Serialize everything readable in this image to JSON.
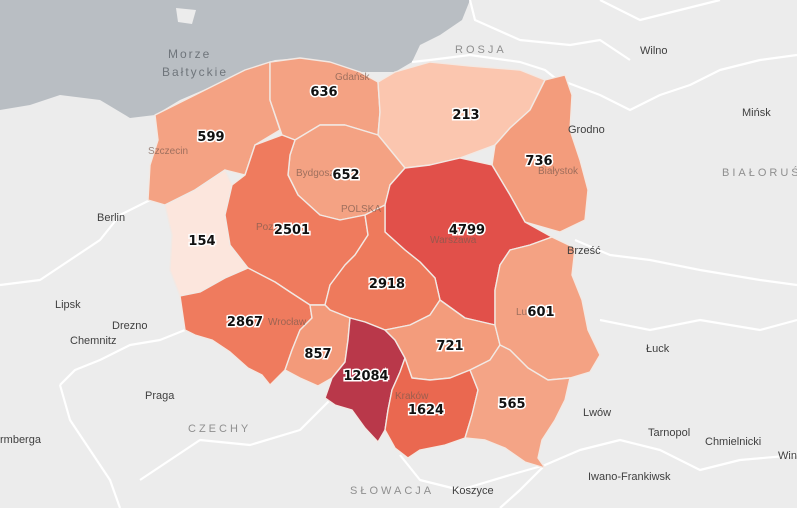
{
  "map": {
    "colors": {
      "sea": "#b9bec3",
      "land": "#ececec"
    },
    "regions": [
      {
        "id": "zachodniopomorskie",
        "value": "599",
        "fill": "#f4a283"
      },
      {
        "id": "pomorskie",
        "value": "636",
        "fill": "#f4a283"
      },
      {
        "id": "warminsko-mazurskie",
        "value": "213",
        "fill": "#fbc6af"
      },
      {
        "id": "podlaskie",
        "value": "736",
        "fill": "#f39c7c"
      },
      {
        "id": "lubuskie",
        "value": "154",
        "fill": "#fce6dd"
      },
      {
        "id": "kujawsko-pomorskie",
        "value": "652",
        "fill": "#f4a283"
      },
      {
        "id": "wielkopolskie",
        "value": "2501",
        "fill": "#ef7b5e"
      },
      {
        "id": "mazowieckie",
        "value": "4799",
        "fill": "#e1504a"
      },
      {
        "id": "lodzkie",
        "value": "2918",
        "fill": "#ee7a5c"
      },
      {
        "id": "dolnoslaskie",
        "value": "2867",
        "fill": "#ef7b5e"
      },
      {
        "id": "opolskie",
        "value": "857",
        "fill": "#f39a7a"
      },
      {
        "id": "slaskie",
        "value": "12084",
        "fill": "#b9384a"
      },
      {
        "id": "swietokrzyskie",
        "value": "721",
        "fill": "#f39c7c"
      },
      {
        "id": "lubelskie",
        "value": "601",
        "fill": "#f4a283"
      },
      {
        "id": "malopolskie",
        "value": "1624",
        "fill": "#ea6850"
      },
      {
        "id": "podkarpackie",
        "value": "565",
        "fill": "#f4a486"
      }
    ],
    "seas": [
      "Morze",
      "Bałtyckie"
    ],
    "countries": [
      "ROSJA",
      "BIAŁORUŚ",
      "CZECHY",
      "SŁOWACJA"
    ],
    "places": [
      "Wilno",
      "Mińsk",
      "Grodno",
      "Berlin",
      "Lipsk",
      "Drezno",
      "Chemnitz",
      "Praga",
      "rmberga",
      "Brześć",
      "Łuck",
      "Lwów",
      "Tarnopol",
      "Chmielnicki",
      "Iwano-Frankiwsk",
      "Koszyce",
      "Win"
    ],
    "faint_places": [
      "Gdańsk",
      "Szczecin",
      "Bydgoszcz",
      "Białystok",
      "Poznań",
      "Warszawa",
      "Wrocław",
      "Kraków",
      "POLSKA",
      "Lublin"
    ]
  }
}
